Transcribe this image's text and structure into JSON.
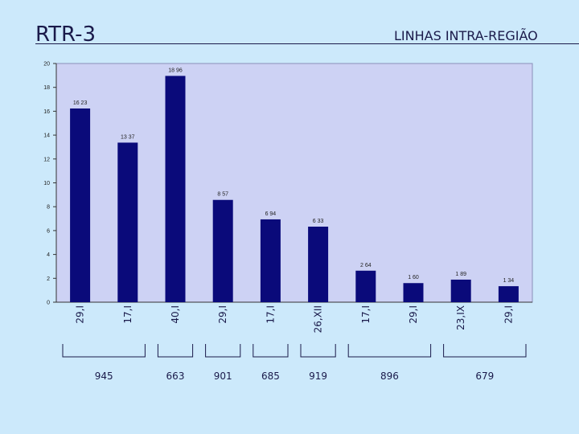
{
  "slide": {
    "title": "RTR-3",
    "subtitle": "LINHAS INTRA-REGIÃO"
  },
  "colors": {
    "background": "#cce9fb",
    "plot_area": "#cdd2f4",
    "bar": "#0a0a7a",
    "text": "#1a1a4a"
  },
  "chart_data": {
    "type": "bar",
    "categories": [
      "29,I",
      "17,I",
      "40,I",
      "29,I",
      "17,I",
      "26,XII",
      "17,I",
      "29,I",
      "23,IX",
      "29,I"
    ],
    "values": [
      16.23,
      13.37,
      18.96,
      8.57,
      6.94,
      6.33,
      2.64,
      1.6,
      1.89,
      1.34
    ],
    "data_labels": [
      "16 23",
      "13 37",
      "18 96",
      "8 57",
      "6 94",
      "6 33",
      "2 64",
      "1 60",
      "1 89",
      "1 34"
    ],
    "ylim": [
      0,
      20
    ],
    "yticks": [
      0,
      2,
      4,
      6,
      8,
      10,
      12,
      14,
      16,
      18,
      20
    ],
    "grid": false,
    "legend": "none",
    "groups": [
      {
        "label": "945",
        "first": 0,
        "last": 1
      },
      {
        "label": "663",
        "first": 2,
        "last": 2
      },
      {
        "label": "901",
        "first": 3,
        "last": 3
      },
      {
        "label": "685",
        "first": 4,
        "last": 4
      },
      {
        "label": "919",
        "first": 5,
        "last": 5
      },
      {
        "label": "896",
        "first": 6,
        "last": 7
      },
      {
        "label": "679",
        "first": 8,
        "last": 9
      }
    ]
  }
}
